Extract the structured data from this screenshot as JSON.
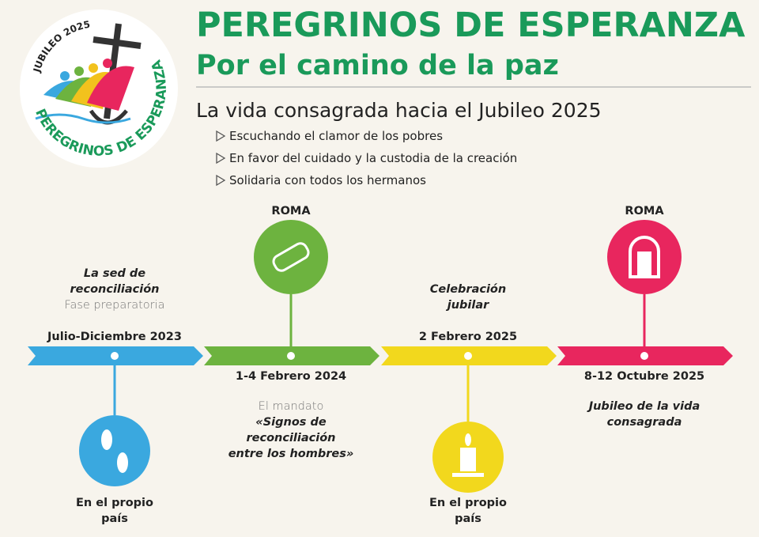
{
  "logo": {
    "top_text": "JUBILEO 2025",
    "bottom_text": "PEREGRINOS DE ESPERANZA"
  },
  "header": {
    "title": "PEREGRINOS DE ESPERANZA",
    "subtitle": "Por el camino de la paz"
  },
  "section": {
    "title": "La vida consagrada hacia el Jubileo 2025",
    "bullets": [
      "Escuchando el clamor de los pobres",
      "En favor del cuidado y la custodia de la creación",
      "Solidaria con todos los hermanos"
    ]
  },
  "timeline": {
    "stages": [
      {
        "date": "Julio-Diciembre 2023",
        "top_lines": [
          "La sed de",
          "reconciliación"
        ],
        "top_note": "Fase preparatoria",
        "bottom_lines": [
          "En el propio",
          "país"
        ]
      },
      {
        "date": "1-4 Febrero 2024",
        "place": "ROMA",
        "note": "El mandato",
        "bottom_lines": [
          "«Signos de",
          "reconciliación",
          "entre los hombres»"
        ]
      },
      {
        "date": "2 Febrero 2025",
        "top_lines": [
          "Celebración",
          "jubilar"
        ],
        "bottom_lines": [
          "En el propio",
          "país"
        ]
      },
      {
        "date": "8-12 Octubre 2025",
        "place": "ROMA",
        "bottom_lines": [
          "Jubileo de la vida",
          "consagrada"
        ]
      }
    ]
  }
}
